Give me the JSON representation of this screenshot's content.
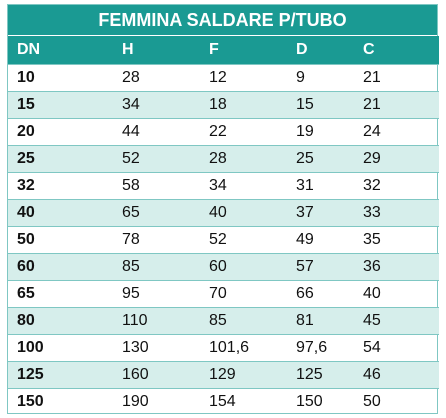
{
  "table": {
    "title": "FEMMINA SALDARE P/TUBO",
    "headers": [
      "DN",
      "H",
      "F",
      "D",
      "C"
    ],
    "rows": [
      [
        "10",
        "28",
        "12",
        "9",
        "21"
      ],
      [
        "15",
        "34",
        "18",
        "15",
        "21"
      ],
      [
        "20",
        "44",
        "22",
        "19",
        "24"
      ],
      [
        "25",
        "52",
        "28",
        "25",
        "29"
      ],
      [
        "32",
        "58",
        "34",
        "31",
        "32"
      ],
      [
        "40",
        "65",
        "40",
        "37",
        "33"
      ],
      [
        "50",
        "78",
        "52",
        "49",
        "35"
      ],
      [
        "60",
        "85",
        "60",
        "57",
        "36"
      ],
      [
        "65",
        "95",
        "70",
        "66",
        "40"
      ],
      [
        "80",
        "110",
        "85",
        "81",
        "45"
      ],
      [
        "100",
        "130",
        "101,6",
        "97,6",
        "54"
      ],
      [
        "125",
        "160",
        "129",
        "125",
        "46"
      ],
      [
        "150",
        "190",
        "154",
        "150",
        "50"
      ]
    ]
  },
  "colors": {
    "header_bg": "#1a9a93",
    "header_text": "#ffffff",
    "row_shade": "#d6eeeb",
    "border": "#7fc7c3"
  }
}
